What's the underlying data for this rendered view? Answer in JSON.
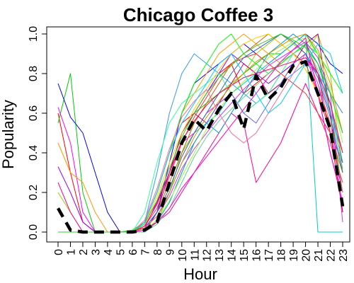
{
  "chart_data": {
    "type": "line",
    "title": "Chicago Coffee 3",
    "xlabel": "Hour",
    "ylabel": "Popularity",
    "x": [
      0,
      1,
      2,
      3,
      4,
      5,
      6,
      7,
      8,
      9,
      10,
      11,
      12,
      13,
      14,
      15,
      16,
      17,
      18,
      19,
      20,
      21,
      22,
      23
    ],
    "x_tick_labels": [
      "0",
      "1",
      "2",
      "3",
      "4",
      "5",
      "6",
      "7",
      "8",
      "9",
      "10",
      "11",
      "12",
      "13",
      "14",
      "15",
      "16",
      "17",
      "18",
      "19",
      "20",
      "21",
      "22",
      "23"
    ],
    "y_ticks": [
      0.0,
      0.2,
      0.4,
      0.6,
      0.8,
      1.0
    ],
    "y_tick_labels": [
      "0.0",
      "0.2",
      "0.4",
      "0.6",
      "0.8",
      "1.0"
    ],
    "xlim": [
      0,
      23
    ],
    "ylim": [
      0,
      1
    ],
    "grid": false,
    "highlight_series": {
      "style": "black dashed thick",
      "values": [
        0.12,
        0.01,
        0.0,
        0.0,
        0.0,
        0.0,
        0.0,
        0.01,
        0.05,
        0.25,
        0.45,
        0.57,
        0.51,
        0.62,
        0.7,
        0.52,
        0.79,
        0.67,
        0.73,
        0.84,
        0.86,
        0.7,
        0.52,
        0.13
      ]
    },
    "series": [
      {
        "color": "#ff0000",
        "values": [
          0.6,
          0.3,
          0.05,
          0,
          0,
          0,
          0,
          0.05,
          0.2,
          0.4,
          0.55,
          0.6,
          0.7,
          0.8,
          0.85,
          0.7,
          0.75,
          0.8,
          0.85,
          0.9,
          0.95,
          0.8,
          0.5,
          0.1
        ]
      },
      {
        "color": "#00cc00",
        "values": [
          0.55,
          0.8,
          0.2,
          0,
          0,
          0,
          0,
          0.02,
          0.1,
          0.3,
          0.5,
          0.6,
          0.65,
          0.7,
          0.75,
          0.8,
          0.85,
          0.9,
          0.9,
          0.95,
          1.0,
          0.9,
          0.6,
          0.2
        ]
      },
      {
        "color": "#0000ff",
        "values": [
          0.75,
          0.58,
          0.5,
          0.3,
          0.1,
          0,
          0,
          0,
          0.1,
          0.35,
          0.6,
          0.75,
          0.8,
          0.85,
          0.9,
          0.95,
          0.9,
          0.85,
          0.9,
          0.95,
          1.0,
          0.95,
          0.85,
          0.8
        ]
      },
      {
        "color": "#ff00ff",
        "values": [
          0.63,
          0.45,
          0.1,
          0,
          0,
          0,
          0,
          0.02,
          0.15,
          0.3,
          0.45,
          0.5,
          0.6,
          0.65,
          0.7,
          0.6,
          0.65,
          0.7,
          0.8,
          0.85,
          0.9,
          0.7,
          0.4,
          0.15
        ]
      },
      {
        "color": "#00cccc",
        "values": [
          0,
          0,
          0,
          0,
          0,
          0,
          0,
          0,
          0.05,
          0.2,
          0.4,
          0.5,
          0.55,
          0.6,
          0.7,
          0.75,
          0.8,
          0.85,
          0.9,
          0.95,
          1.0,
          0,
          0,
          0
        ]
      },
      {
        "color": "#ff9900",
        "values": [
          0.45,
          0.3,
          0.25,
          0.1,
          0,
          0,
          0,
          0.05,
          0.2,
          0.4,
          0.6,
          0.7,
          0.8,
          0.9,
          0.95,
          1.0,
          0.95,
          0.9,
          0.85,
          0.9,
          0.95,
          0.85,
          0.7,
          0.6
        ]
      },
      {
        "color": "#9900ff",
        "values": [
          0.33,
          0.2,
          0.05,
          0,
          0,
          0,
          0,
          0,
          0.1,
          0.3,
          0.5,
          0.6,
          0.7,
          0.8,
          0.9,
          0.85,
          0.8,
          0.75,
          0.8,
          0.85,
          0.9,
          0.75,
          0.5,
          0.2
        ]
      },
      {
        "color": "#99cc00",
        "values": [
          0.2,
          0.1,
          0,
          0,
          0,
          0,
          0,
          0,
          0.05,
          0.2,
          0.4,
          0.5,
          0.6,
          0.7,
          0.75,
          0.8,
          0.9,
          0.95,
          1.0,
          0.95,
          0.9,
          1.0,
          0.8,
          0.3
        ]
      },
      {
        "color": "#ff0099",
        "values": [
          0.25,
          0.1,
          0,
          0,
          0,
          0,
          0.01,
          0.02,
          0.05,
          0.1,
          0.2,
          0.3,
          0.4,
          0.5,
          0.6,
          0.55,
          0.25,
          0.35,
          0.45,
          0.6,
          0.75,
          0.6,
          0.5,
          0.35
        ]
      },
      {
        "color": "#3399ff",
        "values": [
          0,
          0,
          0,
          0,
          0,
          0,
          0,
          0.05,
          0.3,
          0.6,
          0.8,
          0.9,
          0.85,
          0.8,
          0.75,
          0.7,
          0.65,
          0.7,
          0.75,
          0.8,
          0.85,
          0.8,
          0.7,
          0.6
        ]
      },
      {
        "color": "#cc6600",
        "values": [
          0,
          0,
          0,
          0,
          0,
          0,
          0,
          0.02,
          0.1,
          0.25,
          0.4,
          0.55,
          0.65,
          0.75,
          0.85,
          0.9,
          0.95,
          1.0,
          0.95,
          0.9,
          0.85,
          0.7,
          0.5,
          0.3
        ]
      },
      {
        "color": "#33ff99",
        "values": [
          0,
          0,
          0,
          0,
          0,
          0,
          0,
          0.1,
          0.35,
          0.55,
          0.65,
          0.7,
          0.75,
          0.8,
          0.7,
          0.6,
          0.65,
          0.7,
          0.8,
          0.9,
          0.95,
          0.85,
          0.7,
          0.5
        ]
      },
      {
        "color": "#cc0066",
        "values": [
          0,
          0,
          0,
          0,
          0,
          0,
          0,
          0.05,
          0.15,
          0.3,
          0.5,
          0.6,
          0.55,
          0.65,
          0.75,
          0.85,
          0.8,
          0.7,
          0.75,
          0.85,
          0.95,
          1.0,
          0.6,
          0.1
        ]
      },
      {
        "color": "#6666ff",
        "values": [
          0,
          0,
          0,
          0,
          0,
          0,
          0,
          0.02,
          0.1,
          0.2,
          0.35,
          0.45,
          0.55,
          0.65,
          0.7,
          0.6,
          0.55,
          0.65,
          0.75,
          0.85,
          0.9,
          0.8,
          0.6,
          0.4
        ]
      },
      {
        "color": "#00ff00",
        "values": [
          0,
          0,
          0,
          0,
          0,
          0,
          0.01,
          0.05,
          0.2,
          0.4,
          0.6,
          0.75,
          0.85,
          0.95,
          1.0,
          0.9,
          0.85,
          0.8,
          0.85,
          0.9,
          0.95,
          0.9,
          0.8,
          0.7
        ]
      },
      {
        "color": "#ff3333",
        "values": [
          0,
          0,
          0,
          0,
          0,
          0,
          0,
          0.03,
          0.12,
          0.28,
          0.45,
          0.58,
          0.68,
          0.78,
          0.85,
          0.88,
          0.9,
          0.85,
          0.8,
          0.75,
          0.7,
          0.6,
          0.45,
          0.25
        ]
      },
      {
        "color": "#0099cc",
        "values": [
          0,
          0,
          0,
          0,
          0,
          0,
          0,
          0.01,
          0.05,
          0.15,
          0.3,
          0.45,
          0.55,
          0.5,
          0.6,
          0.7,
          0.8,
          0.9,
          0.95,
          1.0,
          0.95,
          0.85,
          0.65,
          0.35
        ]
      },
      {
        "color": "#ffcc00",
        "values": [
          0,
          0,
          0,
          0,
          0,
          0,
          0,
          0.04,
          0.18,
          0.35,
          0.5,
          0.62,
          0.72,
          0.82,
          0.9,
          0.95,
          0.98,
          1.0,
          0.95,
          0.9,
          0.82,
          0.7,
          0.55,
          0.4
        ]
      },
      {
        "color": "#cc33ff",
        "values": [
          0,
          0,
          0,
          0,
          0,
          0,
          0,
          0.02,
          0.08,
          0.18,
          0.32,
          0.42,
          0.5,
          0.58,
          0.65,
          0.72,
          0.78,
          0.84,
          0.88,
          0.92,
          0.96,
          0.88,
          0.7,
          0.05
        ]
      },
      {
        "color": "#66cc99",
        "values": [
          0,
          0,
          0,
          0,
          0,
          0,
          0,
          0,
          0.04,
          0.12,
          0.25,
          0.38,
          0.48,
          0.56,
          0.62,
          0.68,
          0.74,
          0.8,
          0.86,
          0.9,
          0.94,
          0.82,
          0.62,
          0.32
        ]
      },
      {
        "color": "#ff6699",
        "values": [
          0,
          0,
          0,
          0,
          0,
          0,
          0,
          0.06,
          0.22,
          0.42,
          0.58,
          0.66,
          0.72,
          0.6,
          0.5,
          0.45,
          0.5,
          0.6,
          0.7,
          0.8,
          0.9,
          0.75,
          0.55,
          0.2
        ]
      },
      {
        "color": "#3366cc",
        "values": [
          0,
          0,
          0,
          0,
          0,
          0,
          0,
          0.02,
          0.1,
          0.22,
          0.38,
          0.5,
          0.6,
          0.7,
          0.8,
          0.88,
          0.92,
          0.96,
          1.0,
          0.96,
          0.9,
          0.78,
          0.58,
          0.3
        ]
      },
      {
        "color": "#99ff33",
        "values": [
          0,
          0,
          0,
          0,
          0,
          0,
          0,
          0.01,
          0.06,
          0.16,
          0.28,
          0.4,
          0.52,
          0.62,
          0.7,
          0.76,
          0.82,
          0.88,
          0.92,
          0.96,
          0.98,
          0.9,
          0.72,
          0.45
        ]
      },
      {
        "color": "#ff0066",
        "values": [
          0,
          0,
          0,
          0,
          0,
          0,
          0,
          0.03,
          0.14,
          0.3,
          0.46,
          0.56,
          0.64,
          0.7,
          0.74,
          0.78,
          0.8,
          0.82,
          0.84,
          0.86,
          0.88,
          0.8,
          0.65,
          0.4
        ]
      },
      {
        "color": "#00ccff",
        "values": [
          0,
          0,
          0,
          0,
          0,
          0,
          0,
          0.05,
          0.2,
          0.4,
          0.55,
          0.65,
          0.75,
          0.85,
          0.9,
          0.8,
          0.7,
          0.6,
          0.65,
          0.75,
          0.85,
          0.95,
          0.9,
          0.7
        ]
      },
      {
        "color": "#cc9900",
        "values": [
          0,
          0,
          0,
          0,
          0,
          0,
          0,
          0.02,
          0.08,
          0.2,
          0.35,
          0.48,
          0.58,
          0.66,
          0.74,
          0.8,
          0.86,
          0.9,
          0.94,
          0.98,
          1.0,
          0.92,
          0.75,
          0.5
        ]
      },
      {
        "color": "#ff00cc",
        "values": [
          0,
          0,
          0,
          0,
          0,
          0,
          0,
          0.01,
          0.05,
          0.12,
          0.22,
          0.3,
          0.38,
          0.46,
          0.54,
          0.62,
          0.7,
          0.78,
          0.86,
          0.92,
          0.98,
          0.7,
          0.4,
          0.15
        ]
      },
      {
        "color": "#33cc33",
        "values": [
          0,
          0,
          0,
          0,
          0,
          0,
          0,
          0.04,
          0.16,
          0.32,
          0.48,
          0.6,
          0.7,
          0.78,
          0.84,
          0.9,
          0.94,
          0.97,
          1.0,
          0.97,
          0.93,
          0.85,
          0.7,
          0.5
        ]
      }
    ]
  }
}
